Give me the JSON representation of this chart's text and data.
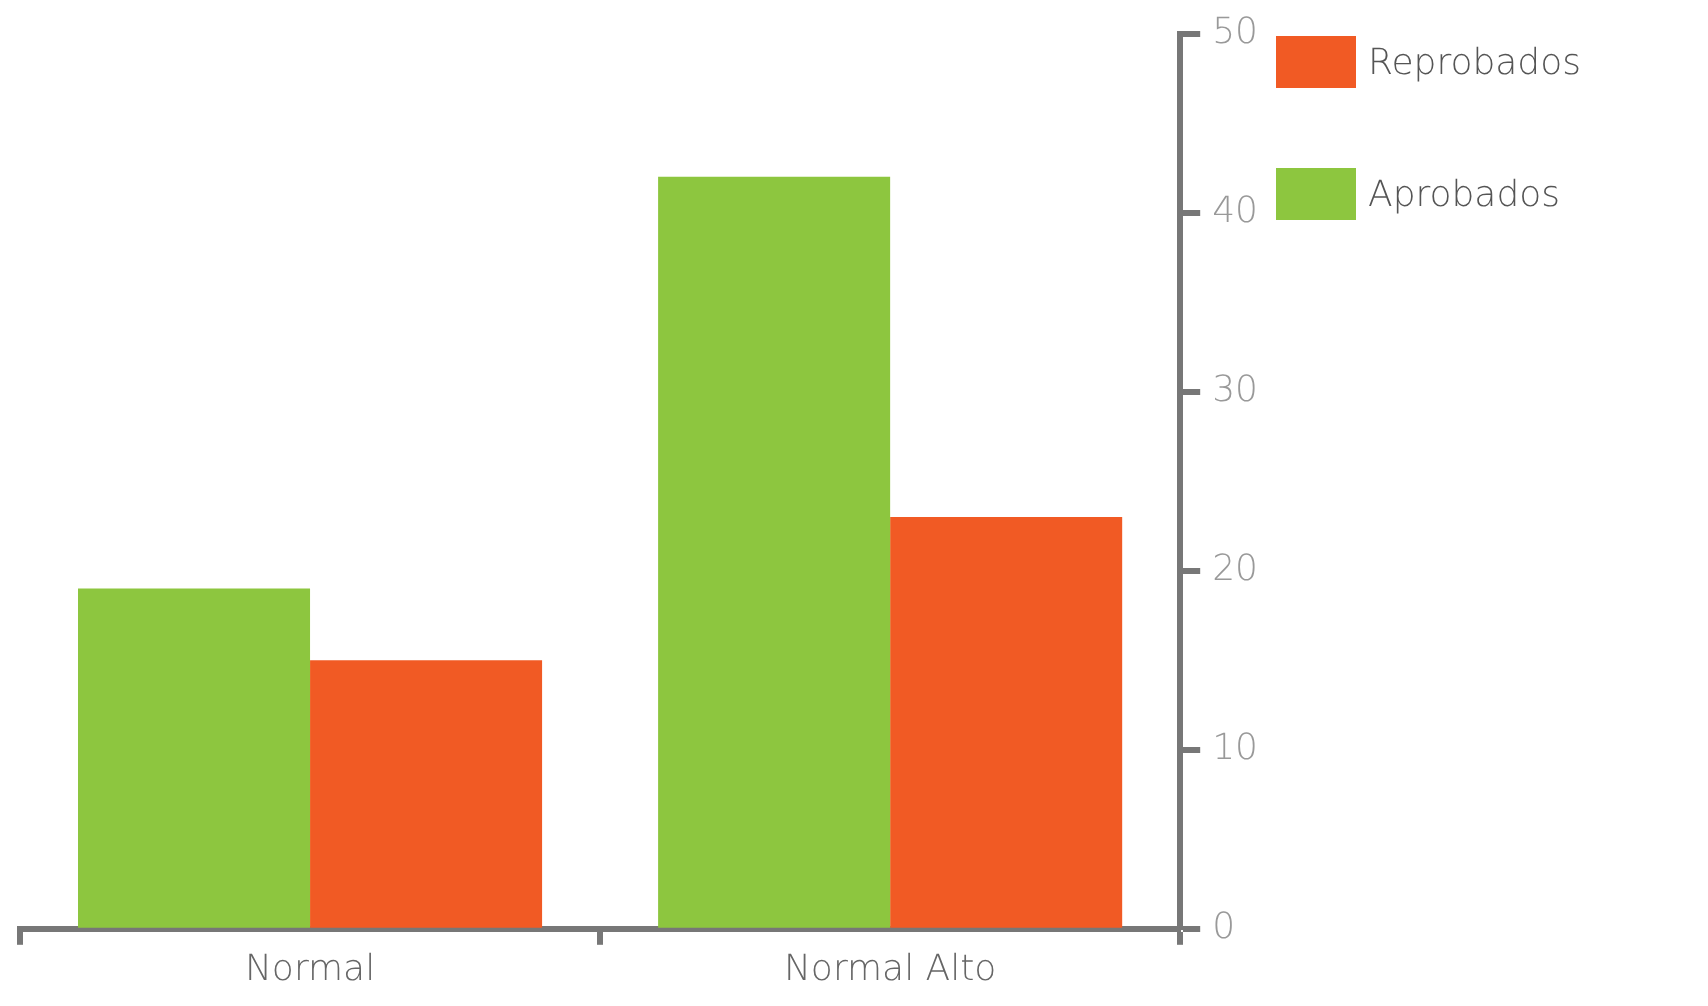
{
  "chart_data": {
    "type": "bar",
    "categories": [
      "Normal",
      "Normal Alto"
    ],
    "series": [
      {
        "name": "Aprobados",
        "color": "#8dc63f",
        "values": [
          19,
          42
        ]
      },
      {
        "name": "Reprobados",
        "color": "#f15a24",
        "values": [
          15,
          23
        ]
      }
    ],
    "ylim": [
      0,
      50
    ],
    "yticks": [
      0,
      10,
      20,
      30,
      40,
      50
    ],
    "legend": "top right"
  }
}
